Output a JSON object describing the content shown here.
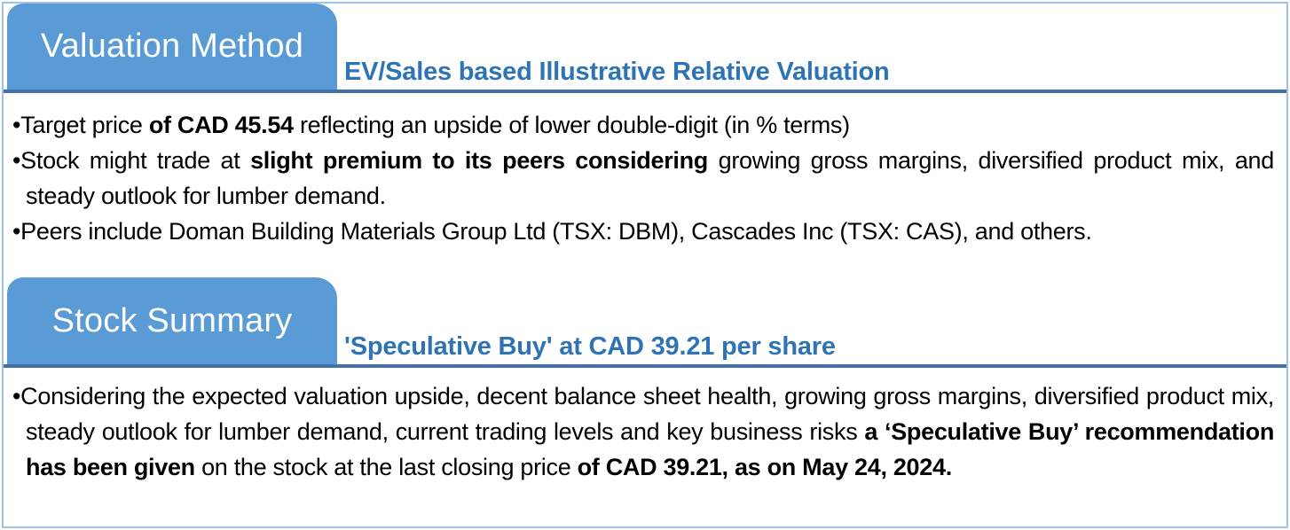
{
  "theme": {
    "tab_blue": "#5B9BD5",
    "divider_blue": "#4071A8",
    "heading_blue": "#2E74B5",
    "frame_border_blue": "#9DC3E6"
  },
  "sections": [
    {
      "tab_label": "Valuation Method",
      "subtitle": "EV/Sales based Illustrative Relative Valuation",
      "bullets": [
        [
          {
            "text": "Target price ",
            "bold": false
          },
          {
            "text": "of CAD 45.54",
            "bold": true
          },
          {
            "text": " reflecting an upside of lower double-digit (in % terms)",
            "bold": false
          }
        ],
        [
          {
            "text": "Stock might trade at ",
            "bold": false
          },
          {
            "text": "slight premium to its peers considering",
            "bold": true
          },
          {
            "text": " growing gross margins, diversified product mix, and steady outlook for lumber demand.",
            "bold": false
          }
        ],
        [
          {
            "text": "Peers include Doman Building Materials Group Ltd (TSX: DBM), Cascades Inc (TSX: CAS), and others.",
            "bold": false
          }
        ]
      ]
    },
    {
      "tab_label": "Stock Summary",
      "subtitle": "'Speculative Buy' at CAD 39.21 per share",
      "bullets": [
        [
          {
            "text": "Considering the expected valuation upside, decent balance sheet health, growing gross margins, diversified product mix, steady outlook for lumber demand, current trading levels and key business risks ",
            "bold": false
          },
          {
            "text": "a ‘Speculative Buy’ recommendation has been given",
            "bold": true
          },
          {
            "text": " on the stock at the last closing price ",
            "bold": false
          },
          {
            "text": "of CAD 39.21, as on May 24, 2024.",
            "bold": true
          }
        ]
      ]
    }
  ]
}
